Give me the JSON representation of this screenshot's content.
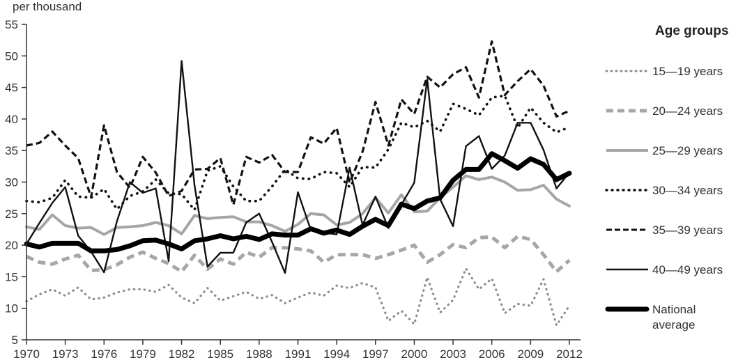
{
  "chart_data": {
    "type": "line",
    "title": "",
    "xlabel": "",
    "ylabel": "per thousand",
    "ylim": [
      5,
      55
    ],
    "xlim": [
      1970,
      2012
    ],
    "grid": false,
    "legend_position": "right",
    "legend_title": "Age groups",
    "y_ticks": [
      5,
      10,
      15,
      20,
      25,
      30,
      35,
      40,
      45,
      50,
      55
    ],
    "x_ticks": [
      1970,
      1973,
      1976,
      1979,
      1982,
      1985,
      1988,
      1991,
      1994,
      1997,
      2000,
      2003,
      2006,
      2009,
      2012
    ],
    "x": [
      1970,
      1971,
      1972,
      1973,
      1974,
      1975,
      1976,
      1977,
      1978,
      1979,
      1980,
      1981,
      1982,
      1983,
      1984,
      1985,
      1986,
      1987,
      1988,
      1989,
      1990,
      1991,
      1992,
      1993,
      1994,
      1995,
      1996,
      1997,
      1998,
      1999,
      2000,
      2001,
      2002,
      2003,
      2004,
      2005,
      2006,
      2007,
      2008,
      2009,
      2010,
      2011,
      2012
    ],
    "series": [
      {
        "name": "15—19 years",
        "color": "#8c8c8c",
        "style": "dotted-gray",
        "values": [
          11.1,
          12.2,
          13.0,
          12.0,
          13.3,
          11.4,
          11.7,
          12.5,
          13.0,
          13.0,
          12.6,
          13.7,
          11.7,
          10.8,
          13.2,
          11.2,
          11.9,
          12.6,
          11.5,
          12.1,
          10.8,
          11.7,
          12.5,
          12.0,
          13.6,
          13.2,
          14.0,
          13.3,
          8.0,
          9.6,
          7.5,
          14.9,
          9.3,
          11.3,
          16.3,
          13.0,
          14.7,
          9.2,
          10.7,
          10.4,
          14.6,
          7.3,
          10.4
        ]
      },
      {
        "name": "20—24 years",
        "color": "#a6a6a6",
        "style": "dashed-gray",
        "values": [
          18.2,
          17.3,
          17.0,
          17.8,
          18.4,
          16.0,
          16.1,
          16.9,
          18.1,
          18.9,
          17.9,
          17.1,
          15.8,
          18.4,
          16.2,
          17.8,
          17.0,
          18.9,
          18.1,
          19.6,
          19.6,
          19.4,
          19.1,
          17.3,
          18.5,
          18.5,
          18.5,
          17.9,
          18.5,
          19.2,
          20.0,
          17.3,
          18.5,
          20.1,
          19.6,
          21.2,
          21.3,
          19.6,
          21.4,
          20.9,
          18.5,
          15.8,
          17.6
        ]
      },
      {
        "name": "25—29 years",
        "color": "#a6a6a6",
        "style": "solid-gray",
        "values": [
          22.9,
          22.5,
          24.8,
          23.1,
          22.7,
          22.8,
          21.7,
          22.8,
          22.9,
          23.1,
          23.6,
          23.1,
          21.8,
          24.7,
          24.2,
          24.4,
          24.5,
          23.7,
          23.7,
          23.1,
          22.2,
          23.3,
          25.0,
          24.8,
          23.2,
          23.6,
          25.0,
          27.5,
          25.1,
          28.0,
          25.3,
          25.4,
          27.5,
          29.2,
          31.0,
          30.4,
          30.8,
          30.0,
          28.7,
          28.8,
          29.5,
          27.3,
          26.2
        ]
      },
      {
        "name": "30—34 years",
        "color": "#111111",
        "style": "dotted-black",
        "values": [
          27.0,
          26.8,
          27.5,
          30.3,
          27.7,
          27.5,
          28.9,
          25.7,
          27.8,
          28.5,
          30.4,
          28.2,
          28.1,
          25.6,
          31.8,
          32.5,
          29.3,
          27.0,
          27.0,
          29.3,
          32.0,
          30.6,
          30.5,
          31.6,
          31.4,
          29.2,
          32.4,
          32.3,
          35.2,
          39.4,
          38.7,
          39.7,
          38.0,
          42.4,
          41.6,
          40.6,
          43.4,
          43.7,
          38.6,
          41.8,
          39.4,
          37.9,
          38.7
        ]
      },
      {
        "name": "35—39 years",
        "color": "#111111",
        "style": "dashed-black",
        "values": [
          35.8,
          36.2,
          38.0,
          35.8,
          33.8,
          27.6,
          39.0,
          31.6,
          29.1,
          34.0,
          31.5,
          27.8,
          28.6,
          32.0,
          32.1,
          33.8,
          26.4,
          34.0,
          33.1,
          34.3,
          31.6,
          31.6,
          37.1,
          36.1,
          38.6,
          29.9,
          34.8,
          42.7,
          35.8,
          43.1,
          40.8,
          46.7,
          45.0,
          47.1,
          48.2,
          43.4,
          52.3,
          43.8,
          46.0,
          47.9,
          45.3,
          40.4,
          41.3
        ]
      },
      {
        "name": "40—49 years",
        "color": "#111111",
        "style": "solid-black",
        "values": [
          20.2,
          23.5,
          26.7,
          29.2,
          21.5,
          19.0,
          15.7,
          23.8,
          30.0,
          28.3,
          29.0,
          17.5,
          49.2,
          29.5,
          16.6,
          18.8,
          18.8,
          23.6,
          25.0,
          20.5,
          15.6,
          28.4,
          22.4,
          22.0,
          21.7,
          32.3,
          23.2,
          27.7,
          22.7,
          26.4,
          29.9,
          46.3,
          27.3,
          23.0,
          35.7,
          37.3,
          32.1,
          34.2,
          39.4,
          39.4,
          35.1,
          29.0,
          31.5
        ]
      },
      {
        "name": "National\naverage",
        "color": "#000000",
        "style": "thick-black",
        "values": [
          20.2,
          19.7,
          20.3,
          20.3,
          20.3,
          19.1,
          19.1,
          19.3,
          19.9,
          20.7,
          20.8,
          20.2,
          19.4,
          20.7,
          21.0,
          21.5,
          21.0,
          21.4,
          20.9,
          21.8,
          21.6,
          21.6,
          22.6,
          21.9,
          22.4,
          21.7,
          23.0,
          24.1,
          23.1,
          26.5,
          25.8,
          27.0,
          27.5,
          30.3,
          32.0,
          32.0,
          34.5,
          33.4,
          32.2,
          33.7,
          32.8,
          30.4,
          31.4
        ]
      }
    ]
  },
  "axis": {
    "unit_label": "per thousand",
    "y_tick_labels": [
      "5",
      "10",
      "15",
      "20",
      "25",
      "30",
      "35",
      "40",
      "45",
      "50",
      "55"
    ],
    "x_tick_labels": [
      "1970",
      "1973",
      "1976",
      "1979",
      "1982",
      "1985",
      "1988",
      "1991",
      "1994",
      "1997",
      "2000",
      "2003",
      "2006",
      "2009",
      "2012"
    ]
  },
  "legend": {
    "title": "Age groups",
    "items": [
      {
        "label": "15—19 years"
      },
      {
        "label": "20—24 years"
      },
      {
        "label": "25—29 years"
      },
      {
        "label": "30—34 years"
      },
      {
        "label": "35—39 years"
      },
      {
        "label": "40—49 years"
      },
      {
        "label": "National\naverage"
      }
    ]
  }
}
